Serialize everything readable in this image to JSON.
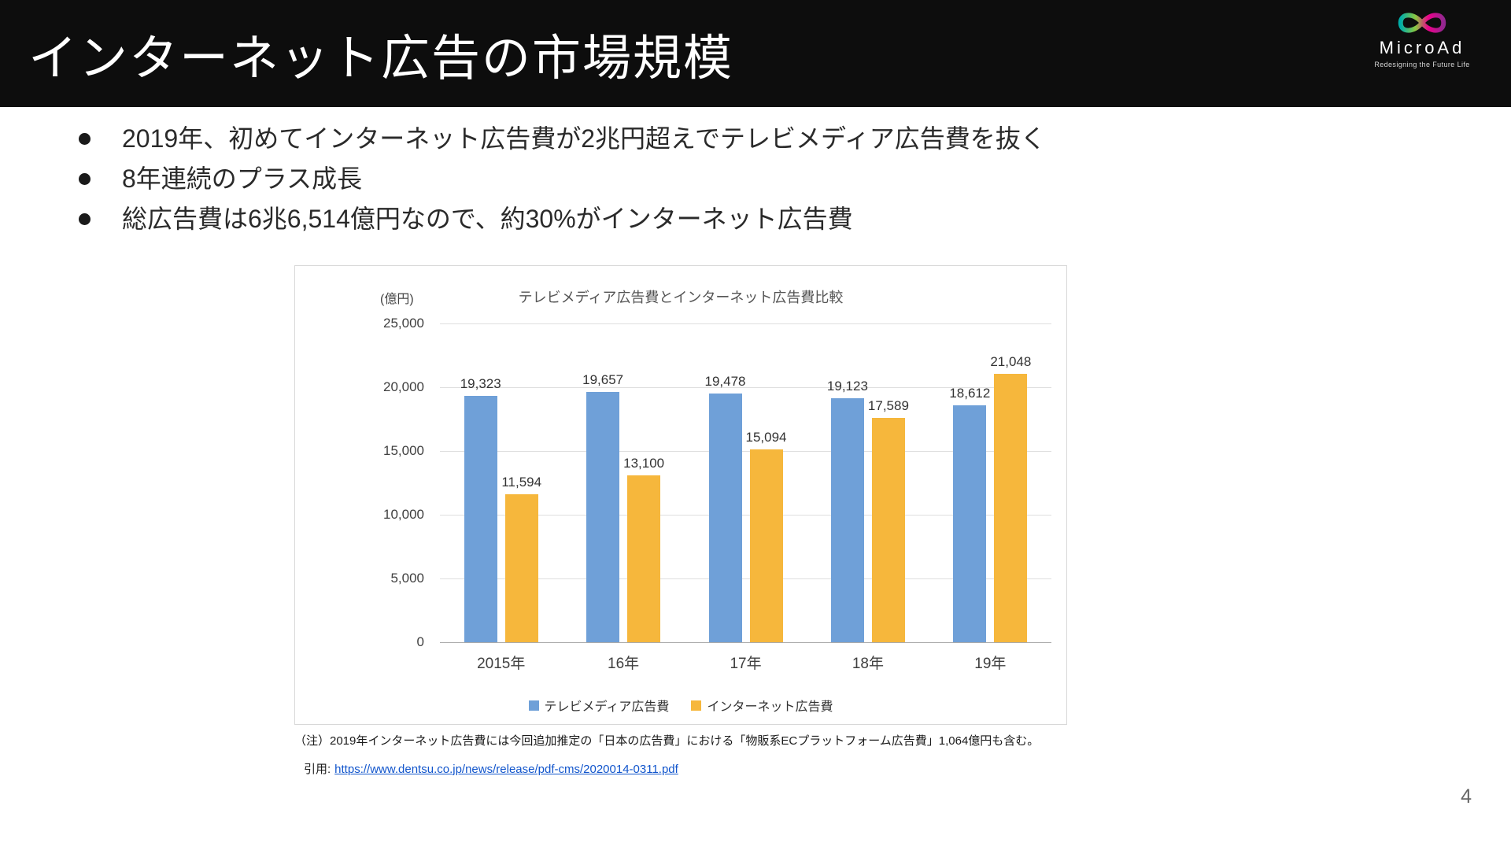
{
  "header": {
    "title": "インターネット広告の市場規模",
    "logo": {
      "brand": "MicroAd",
      "tagline": "Redesigning the Future Life",
      "icon": "infinity-ribbon-icon",
      "colors": [
        "#00AEA9",
        "#8CC63F",
        "#EC008C",
        "#92278F"
      ]
    }
  },
  "bullets": [
    "2019年、初めてインターネット広告費が2兆円超えでテレビメディア広告費を抜く",
    "8年連続のプラス成長",
    "総広告費は6兆6,514億円なので、約30%がインターネット広告費"
  ],
  "chart_data": {
    "type": "bar",
    "title": "テレビメディア広告費とインターネット広告費比較",
    "unit_label": "(億円)",
    "categories": [
      "2015年",
      "16年",
      "17年",
      "18年",
      "19年"
    ],
    "series": [
      {
        "name": "テレビメディア広告費",
        "color": "#6FA0D8",
        "values": [
          19323,
          19657,
          19478,
          19123,
          18612
        ],
        "value_labels": [
          "19,323",
          "19,657",
          "19,478",
          "19,123",
          "18,612"
        ]
      },
      {
        "name": "インターネット広告費",
        "color": "#F6B73C",
        "values": [
          11594,
          13100,
          15094,
          17589,
          21048
        ],
        "value_labels": [
          "11,594",
          "13,100",
          "15,094",
          "17,589",
          "21,048"
        ]
      }
    ],
    "ylim": [
      0,
      25000
    ],
    "yticks": [
      0,
      5000,
      10000,
      15000,
      20000,
      25000
    ],
    "ytick_labels": [
      "0",
      "5,000",
      "10,000",
      "15,000",
      "20,000",
      "25,000"
    ],
    "grid": true,
    "legend_position": "bottom"
  },
  "note": "（注）2019年インターネット広告費には今回追加推定の「日本の広告費」における「物販系ECプラットフォーム広告費」1,064億円も含む。",
  "citation": {
    "prefix": "引用:",
    "url": "https://www.dentsu.co.jp/news/release/pdf-cms/2020014-0311.pdf"
  },
  "page_number": "4"
}
